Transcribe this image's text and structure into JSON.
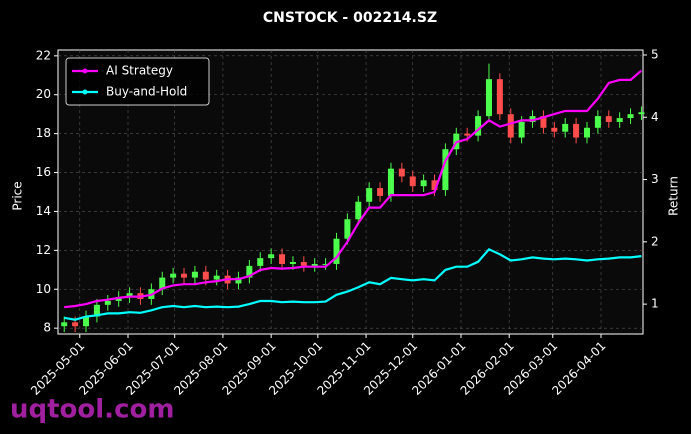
{
  "chart_data": {
    "type": "candlestick",
    "title": "CNSTOCK - 002214.SZ",
    "ylabel": "Price",
    "y2label": "Return",
    "x": [
      "2025-04-21",
      "2025-04-28",
      "2025-05-05",
      "2025-05-12",
      "2025-05-19",
      "2025-05-26",
      "2025-06-02",
      "2025-06-09",
      "2025-06-16",
      "2025-06-23",
      "2025-06-30",
      "2025-07-07",
      "2025-07-14",
      "2025-07-21",
      "2025-07-28",
      "2025-08-04",
      "2025-08-11",
      "2025-08-18",
      "2025-08-25",
      "2025-09-01",
      "2025-09-08",
      "2025-09-15",
      "2025-09-22",
      "2025-09-29",
      "2025-10-06",
      "2025-10-13",
      "2025-10-20",
      "2025-10-27",
      "2025-11-03",
      "2025-11-10",
      "2025-11-17",
      "2025-11-24",
      "2025-12-01",
      "2025-12-08",
      "2025-12-15",
      "2025-12-22",
      "2025-12-29",
      "2026-01-05",
      "2026-01-12",
      "2026-01-19",
      "2026-01-26",
      "2026-02-02",
      "2026-02-09",
      "2026-02-16",
      "2026-02-23",
      "2026-03-02",
      "2026-03-09",
      "2026-03-16",
      "2026-03-23",
      "2026-03-30",
      "2026-04-06",
      "2026-04-13",
      "2026-04-20",
      "2026-04-27"
    ],
    "open": [
      8.1,
      8.3,
      8.1,
      8.6,
      9.2,
      9.4,
      9.6,
      9.8,
      9.5,
      10.0,
      10.6,
      10.8,
      10.6,
      10.9,
      10.5,
      10.7,
      10.3,
      10.6,
      11.2,
      11.6,
      11.8,
      11.3,
      11.4,
      11.2,
      11.3,
      11.3,
      12.6,
      13.6,
      14.5,
      15.2,
      14.8,
      16.2,
      15.8,
      15.3,
      15.6,
      15.1,
      17.2,
      18.0,
      17.9,
      18.9,
      20.8,
      19.0,
      17.8,
      18.6,
      18.9,
      18.3,
      18.1,
      18.5,
      17.8,
      18.3,
      18.9,
      18.6,
      18.8,
      19.0
    ],
    "high": [
      8.6,
      8.6,
      8.9,
      9.5,
      9.7,
      9.9,
      10.1,
      10.1,
      10.3,
      10.9,
      11.1,
      11.1,
      11.2,
      11.2,
      11.0,
      11.0,
      10.9,
      11.5,
      11.9,
      12.1,
      12.1,
      11.7,
      11.7,
      11.6,
      11.6,
      12.9,
      13.9,
      14.8,
      15.5,
      15.5,
      16.5,
      16.5,
      16.1,
      15.9,
      15.9,
      17.5,
      18.3,
      18.3,
      19.2,
      21.6,
      21.1,
      19.3,
      18.9,
      19.2,
      19.2,
      18.6,
      18.8,
      18.8,
      18.6,
      19.2,
      19.2,
      19.1,
      19.3,
      19.4
    ],
    "low": [
      7.8,
      7.8,
      7.8,
      8.3,
      8.9,
      9.1,
      9.3,
      9.2,
      9.2,
      9.7,
      10.3,
      10.3,
      10.3,
      10.2,
      10.2,
      10.0,
      10.0,
      10.3,
      10.9,
      11.3,
      11.0,
      11.0,
      10.9,
      10.9,
      11.0,
      11.0,
      12.3,
      13.3,
      14.2,
      14.5,
      14.5,
      15.5,
      15.0,
      15.0,
      14.8,
      14.8,
      16.9,
      17.6,
      17.6,
      18.6,
      18.7,
      17.5,
      17.5,
      18.3,
      18.0,
      17.8,
      17.8,
      17.5,
      17.5,
      18.0,
      18.3,
      18.3,
      18.5,
      18.7
    ],
    "close": [
      8.3,
      8.1,
      8.6,
      9.2,
      9.4,
      9.6,
      9.8,
      9.5,
      10.0,
      10.6,
      10.8,
      10.6,
      10.9,
      10.5,
      10.7,
      10.3,
      10.6,
      11.2,
      11.6,
      11.8,
      11.3,
      11.4,
      11.2,
      11.3,
      11.3,
      12.6,
      13.6,
      14.5,
      15.2,
      14.8,
      16.2,
      15.8,
      15.3,
      15.6,
      15.1,
      17.2,
      18.0,
      17.9,
      18.9,
      20.8,
      19.0,
      17.8,
      18.6,
      18.9,
      18.3,
      18.1,
      18.5,
      17.8,
      18.3,
      18.9,
      18.6,
      18.8,
      19.0,
      19.1
    ],
    "up_color": "#4cff4c",
    "down_color": "#ff4d4d",
    "series": [
      {
        "name": "AI Strategy",
        "color": "#ff00ff",
        "axis": "y2",
        "values": [
          0.95,
          0.97,
          1.0,
          1.05,
          1.07,
          1.1,
          1.12,
          1.12,
          1.15,
          1.25,
          1.3,
          1.32,
          1.32,
          1.35,
          1.37,
          1.4,
          1.4,
          1.45,
          1.55,
          1.58,
          1.57,
          1.58,
          1.6,
          1.6,
          1.6,
          1.75,
          2.0,
          2.3,
          2.55,
          2.55,
          2.75,
          2.75,
          2.75,
          2.75,
          2.8,
          3.3,
          3.6,
          3.65,
          3.8,
          3.95,
          3.85,
          3.9,
          3.95,
          3.95,
          4.0,
          4.05,
          4.1,
          4.1,
          4.1,
          4.3,
          4.55,
          4.6,
          4.6,
          4.75
        ]
      },
      {
        "name": "Buy-and-Hold",
        "color": "#00ffff",
        "axis": "y2",
        "values": [
          0.78,
          0.75,
          0.8,
          0.82,
          0.85,
          0.85,
          0.87,
          0.86,
          0.9,
          0.95,
          0.97,
          0.95,
          0.97,
          0.95,
          0.96,
          0.95,
          0.96,
          1.0,
          1.05,
          1.05,
          1.03,
          1.04,
          1.03,
          1.03,
          1.04,
          1.15,
          1.2,
          1.27,
          1.35,
          1.32,
          1.42,
          1.4,
          1.38,
          1.4,
          1.38,
          1.55,
          1.6,
          1.6,
          1.68,
          1.88,
          1.8,
          1.7,
          1.72,
          1.75,
          1.73,
          1.72,
          1.73,
          1.72,
          1.7,
          1.72,
          1.73,
          1.75,
          1.75,
          1.77
        ]
      }
    ],
    "xlim": [
      "2025-04-17",
      "2026-04-28"
    ],
    "xticks": [
      "2025-05-01",
      "2025-06-01",
      "2025-07-01",
      "2025-08-01",
      "2025-09-01",
      "2025-10-01",
      "2025-11-01",
      "2025-12-01",
      "2026-01-01",
      "2026-02-01",
      "2026-03-01",
      "2026-04-01"
    ],
    "ylim": [
      7.7,
      22.3
    ],
    "yticks": [
      8,
      10,
      12,
      14,
      16,
      18,
      20,
      22
    ],
    "y2lim": [
      0.52,
      5.08
    ],
    "y2ticks": [
      1,
      2,
      3,
      4,
      5
    ],
    "grid": true,
    "legend": "upper left"
  },
  "watermark": "uqtool.com"
}
